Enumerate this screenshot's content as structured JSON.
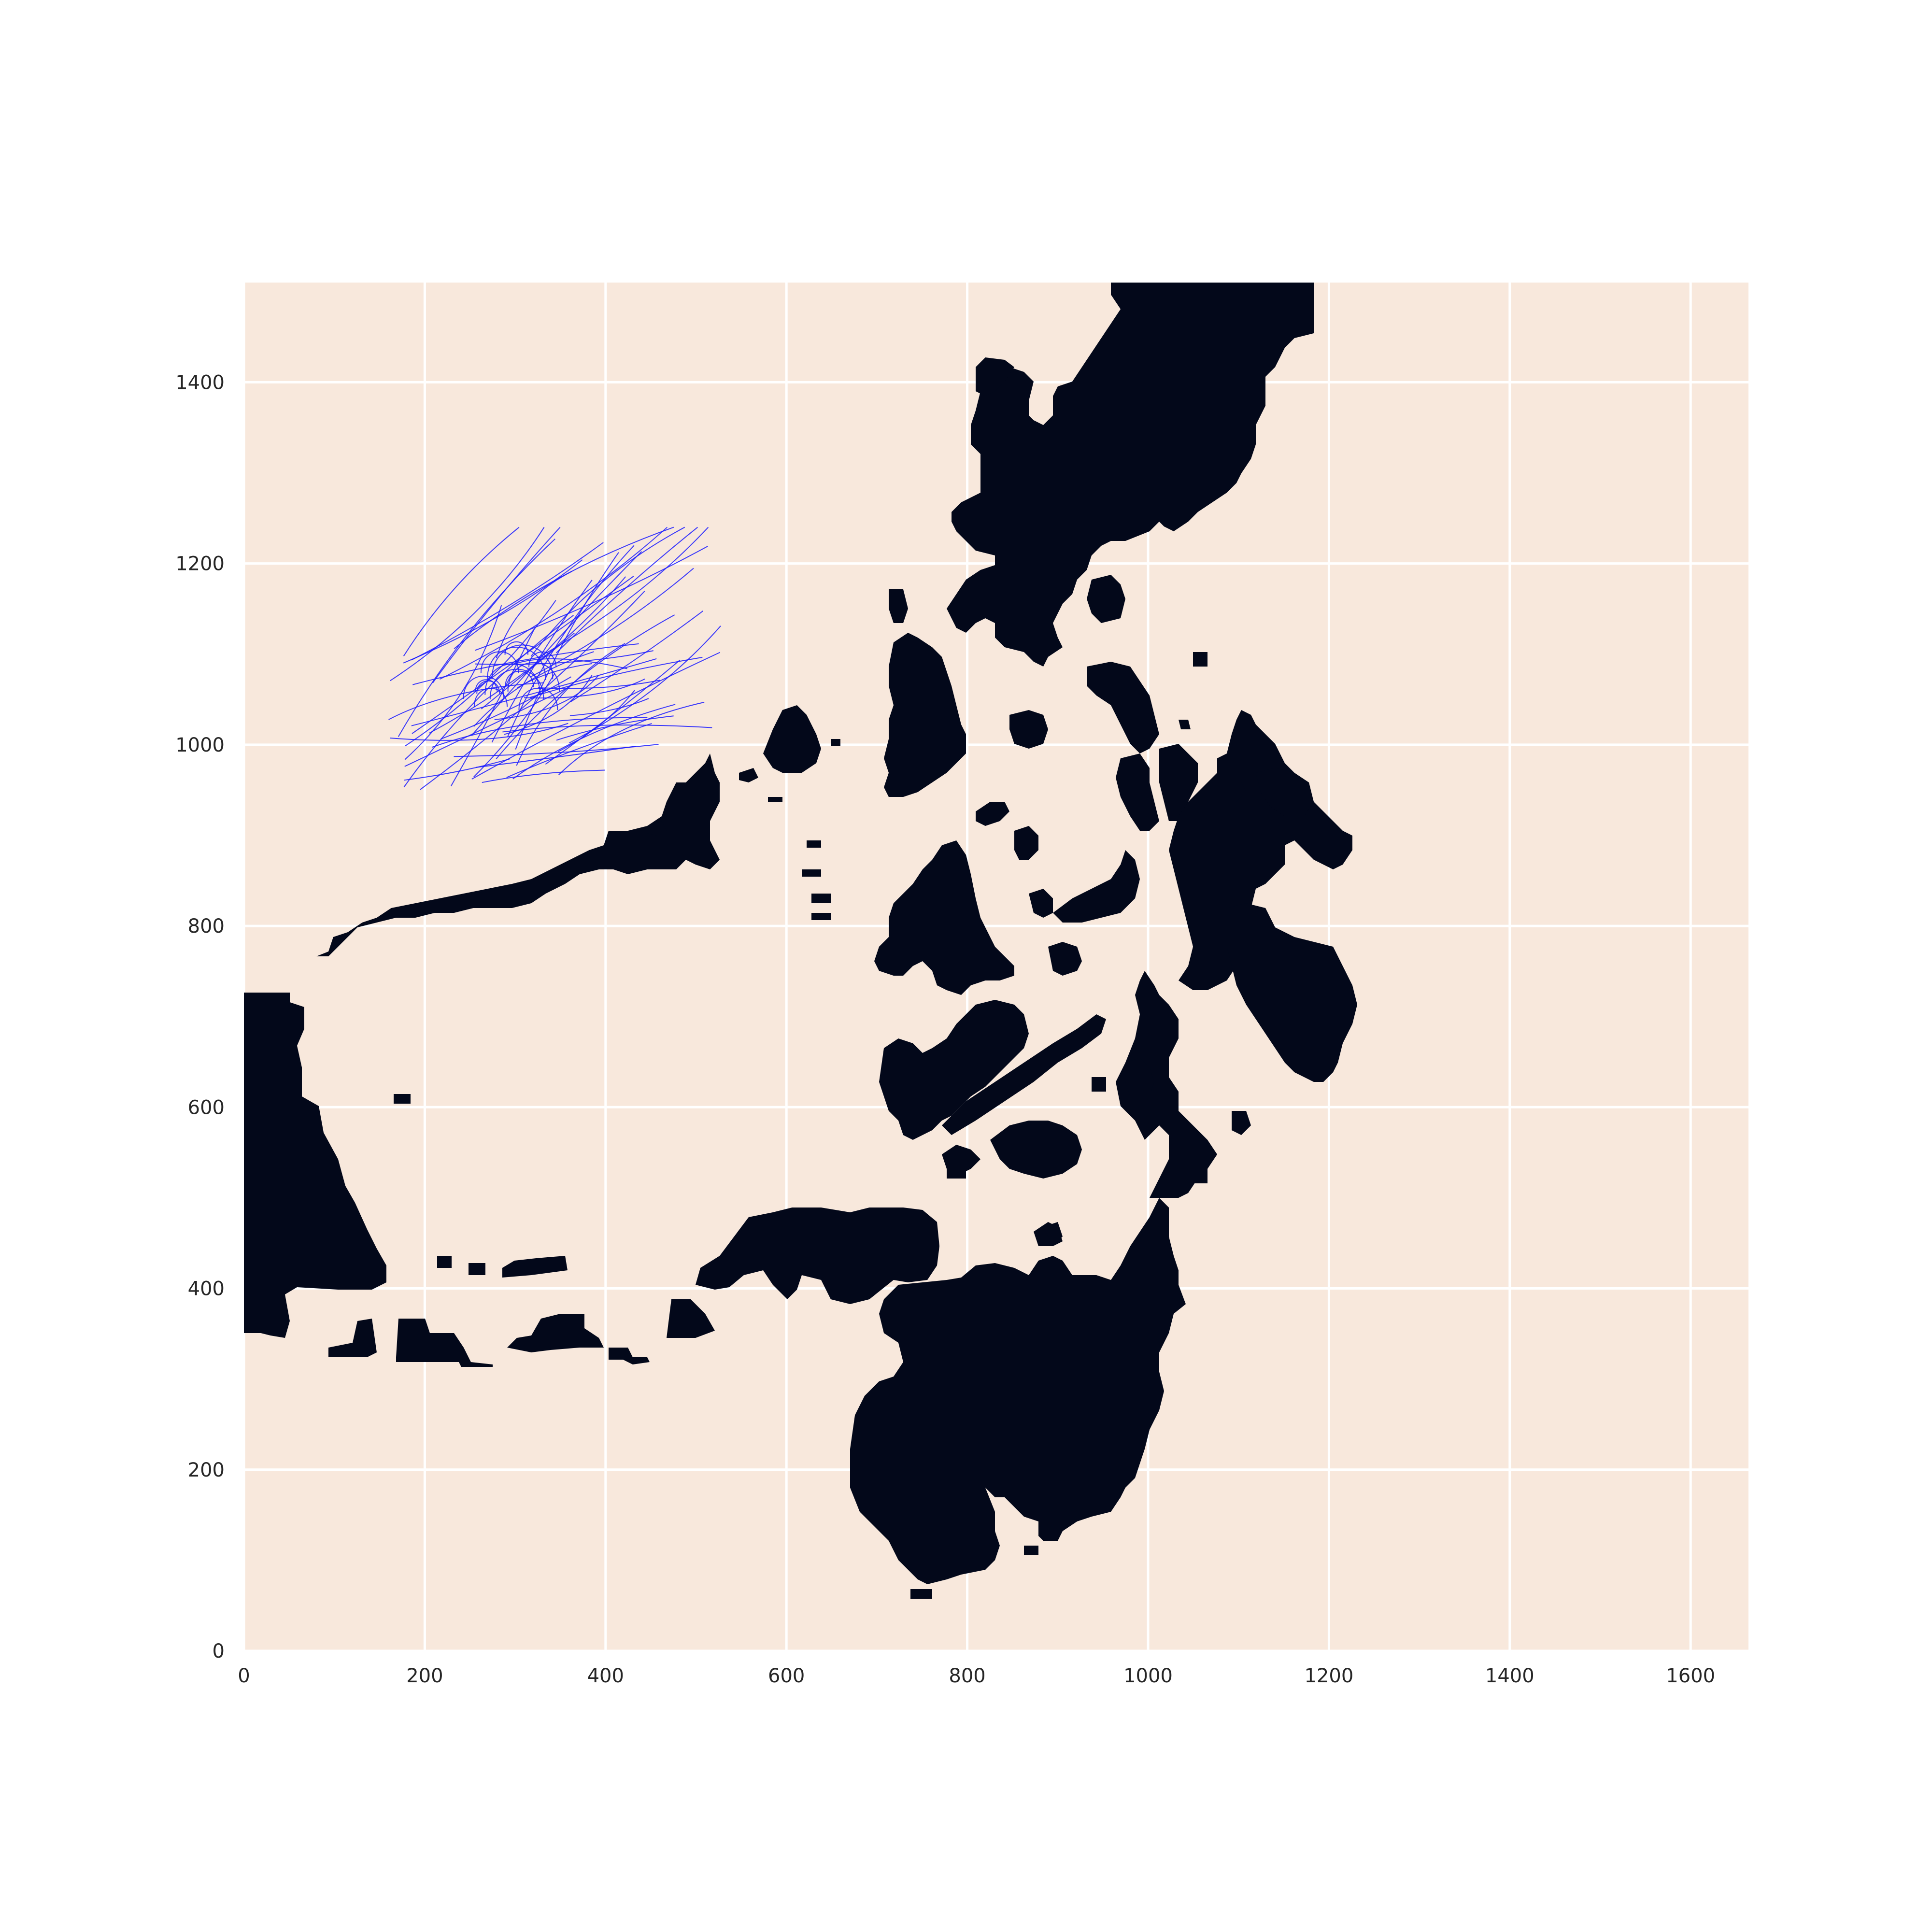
{
  "chart_data": {
    "type": "map",
    "title": "",
    "xlabel": "",
    "ylabel": "",
    "xlim": [
      0,
      1664
    ],
    "ylim": [
      0,
      1510
    ],
    "xticks": [
      "0",
      "200",
      "400",
      "600",
      "800",
      "1000",
      "1200",
      "1400",
      "1600"
    ],
    "yticks": [
      "0",
      "200",
      "400",
      "600",
      "800",
      "1000",
      "1200",
      "1400"
    ],
    "grid": true,
    "colors": {
      "sea": "#f8e8dc",
      "land": "#03081a",
      "tracks": "#1a1aff",
      "grid": "#ffffff"
    },
    "tracks_region": {
      "x": [
        160,
        540
      ],
      "y": [
        950,
        1240
      ]
    }
  }
}
